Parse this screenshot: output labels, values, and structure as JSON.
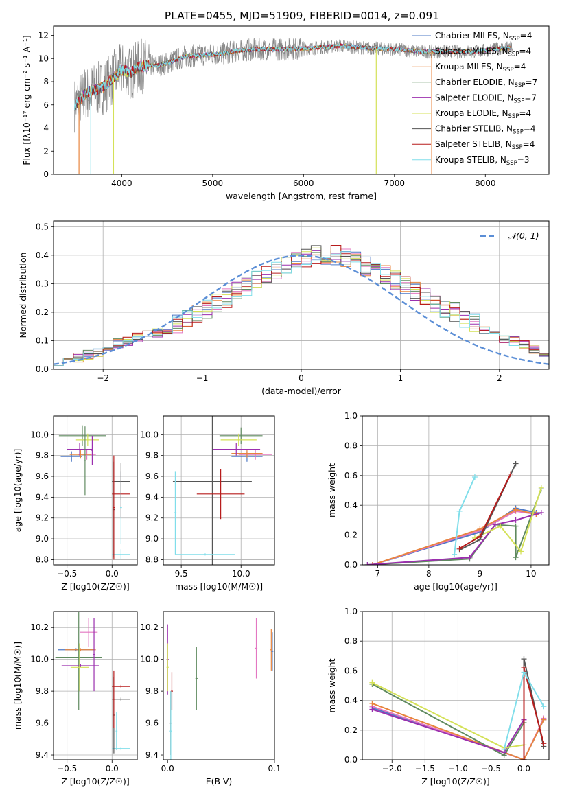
{
  "title": "PLATE=0455, MJD=51909, FIBERID=0014, z=0.091",
  "colors": {
    "Chabrier MILES": "#4e79c5",
    "Salpeter MILES": "#e377c2",
    "Kroupa MILES": "#e8853e",
    "Chabrier ELODIE": "#5f8a5f",
    "Salpeter ELODIE": "#9b2fae",
    "Kroupa ELODIE": "#d4e157",
    "Chabrier STELIB": "#555555",
    "Salpeter STELIB": "#b71c1c",
    "Kroupa STELIB": "#80deea",
    "gaussian": "#5b8ed6"
  },
  "chart_data": [
    {
      "id": "spectrum",
      "type": "line",
      "xlabel": "wavelength [Angstrom, rest frame]",
      "ylabel": "Flux [fλ10⁻¹⁷ erg cm⁻² s⁻¹ A⁻¹]",
      "xlim": [
        3250,
        8700
      ],
      "ylim": [
        0,
        12.8
      ],
      "xticks": [
        4000,
        5000,
        6000,
        7000,
        8000
      ],
      "yticks": [
        0,
        2,
        4,
        6,
        8,
        10,
        12
      ],
      "data_continuum": {
        "x": [
          3500,
          3600,
          3700,
          3800,
          3900,
          4000,
          4100,
          4200,
          4300,
          4400,
          4500,
          4700,
          4900,
          5100,
          5300,
          5500,
          5800,
          6100,
          6400,
          6700,
          7000,
          7300,
          7600,
          7900,
          8200
        ],
        "y": [
          6.0,
          7.0,
          7.3,
          7.5,
          8.3,
          9.0,
          8.8,
          9.3,
          9.4,
          9.4,
          9.6,
          10.2,
          10.3,
          10.4,
          10.7,
          10.8,
          10.8,
          10.9,
          11.1,
          10.9,
          10.8,
          10.6,
          10.6,
          10.6,
          10.9
        ]
      },
      "legend": [
        "Chabrier MILES, N_SSP=4",
        "Salpeter MILES, N_SSP=4",
        "Kroupa MILES, N_SSP=4",
        "Chabrier ELODIE, N_SSP=7",
        "Salpeter ELODIE, N_SSP=7",
        "Kroupa ELODIE, N_SSP=4",
        "Chabrier STELIB, N_SSP=4",
        "Salpeter STELIB, N_SSP=4",
        "Kroupa STELIB, N_SSP=3"
      ],
      "legend_text": [
        {
          "name": "Chabrier MILES",
          "n": "4"
        },
        {
          "name": "Salpeter MILES",
          "n": "4"
        },
        {
          "name": "Kroupa MILES",
          "n": "4"
        },
        {
          "name": "Chabrier ELODIE",
          "n": "7"
        },
        {
          "name": "Salpeter ELODIE",
          "n": "7"
        },
        {
          "name": "Kroupa ELODIE",
          "n": "4"
        },
        {
          "name": "Chabrier STELIB",
          "n": "4"
        },
        {
          "name": "Salpeter STELIB",
          "n": "4"
        },
        {
          "name": "Kroupa STELIB",
          "n": "3"
        }
      ],
      "legend_placement": "right"
    },
    {
      "id": "residuals",
      "type": "line",
      "xlabel": "(data-model)/error",
      "ylabel": "Normed distribution",
      "xlim": [
        -2.5,
        2.5
      ],
      "ylim": [
        0,
        0.52
      ],
      "xticks": [
        -2,
        -1,
        0,
        1,
        2
      ],
      "xtick_labels": [
        "−2",
        "−1",
        "0",
        "1",
        "2"
      ],
      "yticks": [
        0.0,
        0.1,
        0.2,
        0.3,
        0.4,
        0.5
      ],
      "ytick_labels": [
        "0.0",
        "0.1",
        "0.2",
        "0.3",
        "0.4",
        "0.5"
      ],
      "bin_width": 0.1,
      "bins_start": -2.5,
      "histogram_values": [
        0.03,
        0.04,
        0.04,
        0.05,
        0.06,
        0.08,
        0.09,
        0.1,
        0.11,
        0.12,
        0.13,
        0.14,
        0.16,
        0.18,
        0.2,
        0.21,
        0.23,
        0.25,
        0.27,
        0.29,
        0.31,
        0.33,
        0.35,
        0.36,
        0.38,
        0.39,
        0.4,
        0.4,
        0.4,
        0.39,
        0.38,
        0.36,
        0.35,
        0.33,
        0.31,
        0.29,
        0.27,
        0.25,
        0.23,
        0.21,
        0.2,
        0.18,
        0.16,
        0.14,
        0.12,
        0.11,
        0.1,
        0.09,
        0.07,
        0.06
      ],
      "gaussian_label": "𝒩(0, 1)",
      "legend_placement": "top-right",
      "grid": true
    },
    {
      "id": "age-vs-Z",
      "type": "scatter",
      "xlabel": "Z [log10(Z/Z☉)]",
      "ylabel": "age  [log10(age/yr)]",
      "xlim": [
        -0.65,
        0.28
      ],
      "ylim": [
        8.75,
        10.18
      ],
      "xticks": [
        -0.5,
        0.0
      ],
      "xtick_labels": [
        "−0.5",
        "0.0"
      ],
      "yticks": [
        8.8,
        9.0,
        9.2,
        9.4,
        9.6,
        9.8,
        10.0
      ],
      "ytick_labels": [
        "8.8",
        "9.0",
        "9.2",
        "9.4",
        "9.6",
        "9.8",
        "10.0"
      ],
      "grid": true,
      "points": [
        {
          "model": "Chabrier MILES",
          "x": -0.45,
          "xerr": 0.12,
          "y": 9.79,
          "yerr": 0.05
        },
        {
          "model": "Salpeter MILES",
          "x": -0.28,
          "xerr": 0.1,
          "y": 9.81,
          "yerr": 0.05
        },
        {
          "model": "Kroupa MILES",
          "x": -0.35,
          "xerr": 0.12,
          "y": 9.81,
          "yerr": 0.04
        },
        {
          "model": "Chabrier ELODIE",
          "x": -0.33,
          "xerr": 0.26,
          "y": 9.99,
          "yerr": 0.1
        },
        {
          "model": "Salpeter ELODIE",
          "x": -0.36,
          "xerr": 0.14,
          "y": 9.86,
          "yerr": 0.06
        },
        {
          "model": "Kroupa ELODIE",
          "x": -0.27,
          "xerr": 0.13,
          "y": 9.95,
          "yerr": 0.06
        },
        {
          "model": "Chabrier STELIB",
          "x": 0.1,
          "xerr": 0.1,
          "y": 9.55,
          "yerr": 0.18
        },
        {
          "model": "Salpeter STELIB",
          "x": 0.1,
          "xerr": 0.1,
          "y": 9.43,
          "yerr": 0.22
        },
        {
          "model": "Kroupa STELIB",
          "x": 0.1,
          "xerr": 0.1,
          "y": 8.85,
          "yerr": 0.05
        },
        {
          "model": "Chabrier ELODIE",
          "x": -0.3,
          "xerr": 0.01,
          "y": 9.75,
          "yerr": 0.33
        },
        {
          "model": "Salpeter ELODIE",
          "x": -0.22,
          "xerr": 0.01,
          "y": 9.85,
          "yerr": 0.14
        },
        {
          "model": "Kroupa STELIB",
          "x": 0.1,
          "xerr": 0.01,
          "y": 9.3,
          "yerr": 0.35
        },
        {
          "model": "Chabrier STELIB",
          "x": 0.02,
          "xerr": 0.01,
          "y": 9.28,
          "yerr": 0.46
        },
        {
          "model": "Salpeter STELIB",
          "x": 0.02,
          "xerr": 0.01,
          "y": 9.3,
          "yerr": 0.5
        }
      ]
    },
    {
      "id": "age-vs-mass",
      "type": "scatter",
      "xlabel": "mass [log10(M/M☉)]",
      "ylabel": "",
      "xlim": [
        9.35,
        10.28
      ],
      "ylim": [
        8.75,
        10.18
      ],
      "xticks": [
        9.5,
        10.0
      ],
      "xtick_labels": [
        "9.5",
        "10.0"
      ],
      "yticks": [
        8.8,
        9.0,
        9.2,
        9.4,
        9.6,
        9.8,
        10.0
      ],
      "ytick_labels": [
        "8.8",
        "9.0",
        "9.2",
        "9.4",
        "9.6",
        "9.8",
        "10.0"
      ],
      "grid": true,
      "points": [
        {
          "model": "Chabrier MILES",
          "x": 10.05,
          "xerr": 0.13,
          "y": 9.79,
          "yerr": 0.05
        },
        {
          "model": "Salpeter MILES",
          "x": 10.12,
          "xerr": 0.14,
          "y": 9.81,
          "yerr": 0.05
        },
        {
          "model": "Kroupa MILES",
          "x": 10.05,
          "xerr": 0.13,
          "y": 9.82,
          "yerr": 0.04
        },
        {
          "model": "Chabrier ELODIE",
          "x": 10.0,
          "xerr": 0.18,
          "y": 9.99,
          "yerr": 0.08
        },
        {
          "model": "Salpeter ELODIE",
          "x": 9.96,
          "xerr": 0.2,
          "y": 9.86,
          "yerr": 0.06
        },
        {
          "model": "Kroupa ELODIE",
          "x": 9.98,
          "xerr": 0.15,
          "y": 9.95,
          "yerr": 0.06
        },
        {
          "model": "Chabrier STELIB",
          "x": 9.76,
          "xerr": 0.33,
          "y": 9.55,
          "yerr": 0.8
        },
        {
          "model": "Salpeter STELIB",
          "x": 9.83,
          "xerr": 0.2,
          "y": 9.43,
          "yerr": 0.24
        },
        {
          "model": "Kroupa STELIB",
          "x": 9.45,
          "xerr": 0.01,
          "y": 9.25,
          "yerr": 0.4
        },
        {
          "model": "Kroupa STELIB",
          "x": 9.7,
          "xerr": 0.25,
          "y": 8.85,
          "yerr": 0.01
        }
      ]
    },
    {
      "id": "weight-vs-age",
      "type": "line",
      "xlabel": "age  [log10(age/yr)]",
      "ylabel": "mass weight",
      "xlim": [
        6.7,
        10.35
      ],
      "ylim": [
        0,
        1.0
      ],
      "xticks": [
        7,
        8,
        9,
        10
      ],
      "xtick_labels": [
        "7",
        "8",
        "9",
        "10"
      ],
      "yticks": [
        0.0,
        0.2,
        0.4,
        0.6,
        0.8,
        1.0
      ],
      "ytick_labels": [
        "0.0",
        "0.2",
        "0.4",
        "0.6",
        "0.8",
        "1.0"
      ],
      "grid": true,
      "series": [
        {
          "name": "Chabrier MILES",
          "x": [
            6.9,
            9.0,
            9.7,
            10.1
          ],
          "y": [
            0.0,
            0.22,
            0.38,
            0.35
          ]
        },
        {
          "name": "Salpeter MILES",
          "x": [
            6.9,
            9.0,
            9.7,
            10.1
          ],
          "y": [
            0.0,
            0.23,
            0.36,
            0.34
          ]
        },
        {
          "name": "Kroupa MILES",
          "x": [
            6.9,
            9.0,
            9.7,
            10.1
          ],
          "y": [
            0.0,
            0.24,
            0.37,
            0.34
          ]
        },
        {
          "name": "Chabrier ELODIE",
          "x": [
            6.8,
            8.8,
            9.3,
            9.7,
            9.7,
            10.2
          ],
          "y": [
            0.0,
            0.04,
            0.27,
            0.26,
            0.05,
            0.51
          ]
        },
        {
          "name": "Salpeter ELODIE",
          "x": [
            6.8,
            8.8,
            9.3,
            9.7,
            10.2
          ],
          "y": [
            0.0,
            0.05,
            0.27,
            0.3,
            0.35
          ]
        },
        {
          "name": "Kroupa ELODIE",
          "x": [
            8.9,
            9.4,
            9.8,
            10.2
          ],
          "y": [
            0.18,
            0.26,
            0.09,
            0.52
          ]
        },
        {
          "name": "Chabrier STELIB",
          "x": [
            8.6,
            9.0,
            9.7
          ],
          "y": [
            0.1,
            0.17,
            0.68
          ]
        },
        {
          "name": "Salpeter STELIB",
          "x": [
            8.6,
            9.0,
            9.6
          ],
          "y": [
            0.11,
            0.19,
            0.61
          ]
        },
        {
          "name": "Kroupa STELIB",
          "x": [
            8.5,
            8.6,
            8.9
          ],
          "y": [
            0.07,
            0.36,
            0.59
          ]
        }
      ]
    },
    {
      "id": "mass-vs-Z",
      "type": "scatter",
      "xlabel": "Z [log10(Z/Z☉)]",
      "ylabel": "mass [log10(M/M☉)]",
      "xlim": [
        -0.65,
        0.28
      ],
      "ylim": [
        9.37,
        10.3
      ],
      "xticks": [
        -0.5,
        0.0
      ],
      "xtick_labels": [
        "−0.5",
        "0.0"
      ],
      "yticks": [
        9.4,
        9.6,
        9.8,
        10.0,
        10.2
      ],
      "ytick_labels": [
        "9.4",
        "9.6",
        "9.8",
        "10.0",
        "10.2"
      ],
      "grid": true,
      "points": [
        {
          "model": "Chabrier MILES",
          "x": -0.4,
          "xerr": 0.2,
          "y": 10.06,
          "yerr": 0.01
        },
        {
          "model": "Salpeter MILES",
          "x": -0.26,
          "xerr": 0.1,
          "y": 10.17,
          "yerr": 0.09
        },
        {
          "model": "Kroupa MILES",
          "x": -0.35,
          "xerr": 0.17,
          "y": 10.06,
          "yerr": 0.01
        },
        {
          "model": "Chabrier ELODIE",
          "x": -0.37,
          "xerr": 0.26,
          "y": 10.01,
          "yerr": 0.33
        },
        {
          "model": "Salpeter ELODIE",
          "x": -0.35,
          "xerr": 0.21,
          "y": 9.96,
          "yerr": 0.01
        },
        {
          "model": "Kroupa ELODIE",
          "x": -0.36,
          "xerr": 0.1,
          "y": 9.95,
          "yerr": 0.15
        },
        {
          "model": "Chabrier STELIB",
          "x": 0.1,
          "xerr": 0.1,
          "y": 9.75,
          "yerr": 0.01
        },
        {
          "model": "Salpeter STELIB",
          "x": 0.1,
          "xerr": 0.1,
          "y": 9.83,
          "yerr": 0.01
        },
        {
          "model": "Kroupa STELIB",
          "x": 0.1,
          "xerr": 0.1,
          "y": 9.44,
          "yerr": 0.01
        },
        {
          "model": "Salpeter ELODIE",
          "x": -0.2,
          "xerr": 0.01,
          "y": 10.03,
          "yerr": 0.23
        },
        {
          "model": "Chabrier STELIB",
          "x": 0.02,
          "xerr": 0.01,
          "y": 9.65,
          "yerr": 0.24
        },
        {
          "model": "Salpeter STELIB",
          "x": 0.02,
          "xerr": 0.01,
          "y": 9.75,
          "yerr": 0.18
        },
        {
          "model": "Kroupa STELIB",
          "x": 0.05,
          "xerr": 0.01,
          "y": 9.55,
          "yerr": 0.12
        }
      ]
    },
    {
      "id": "mass-vs-ebv",
      "type": "scatter",
      "xlabel": "E(B-V)",
      "ylabel": "",
      "xlim": [
        -0.004,
        0.1
      ],
      "ylim": [
        9.37,
        10.3
      ],
      "xticks": [
        0.0,
        0.1
      ],
      "xtick_labels": [
        "0.0",
        "0.1"
      ],
      "yticks": [
        9.4,
        9.6,
        9.8,
        10.0,
        10.2
      ],
      "ytick_labels": [
        "9.4",
        "9.6",
        "9.8",
        "10.0",
        "10.2"
      ],
      "grid": false,
      "points": [
        {
          "model": "Salpeter ELODIE",
          "x": 0.0,
          "xerr": 0.001,
          "y": 10.0,
          "yerr": 0.22
        },
        {
          "model": "Kroupa ELODIE",
          "x": 0.0,
          "xerr": 0.001,
          "y": 9.95,
          "yerr": 0.15
        },
        {
          "model": "Chabrier STELIB",
          "x": 0.003,
          "xerr": 0.001,
          "y": 9.6,
          "yerr": 0.2
        },
        {
          "model": "Salpeter STELIB",
          "x": 0.004,
          "xerr": 0.001,
          "y": 9.8,
          "yerr": 0.12
        },
        {
          "model": "Kroupa STELIB",
          "x": 0.003,
          "xerr": 0.001,
          "y": 9.55,
          "yerr": 0.25
        },
        {
          "model": "Chabrier ELODIE",
          "x": 0.027,
          "xerr": 0.001,
          "y": 9.88,
          "yerr": 0.2
        },
        {
          "model": "Salpeter MILES",
          "x": 0.083,
          "xerr": 0.001,
          "y": 10.07,
          "yerr": 0.19
        },
        {
          "model": "Kroupa MILES",
          "x": 0.097,
          "xerr": 0.001,
          "y": 10.06,
          "yerr": 0.13
        },
        {
          "model": "Chabrier MILES",
          "x": 0.098,
          "xerr": 0.001,
          "y": 10.05,
          "yerr": 0.12
        }
      ]
    },
    {
      "id": "weight-vs-Z",
      "type": "line",
      "xlabel": "Z [log10(Z/Z☉)]",
      "ylabel": "mass weight",
      "xlim": [
        -2.45,
        0.38
      ],
      "ylim": [
        0,
        1.0
      ],
      "xticks": [
        -2.0,
        -1.5,
        -1.0,
        -0.5,
        0.0
      ],
      "xtick_labels": [
        "−2.0",
        "−1.5",
        "−1.0",
        "−0.5",
        "0.0"
      ],
      "yticks": [
        0.0,
        0.2,
        0.4,
        0.6,
        0.8,
        1.0
      ],
      "ytick_labels": [
        "0.0",
        "0.2",
        "0.4",
        "0.6",
        "0.8",
        "1.0"
      ],
      "grid": true,
      "series": [
        {
          "name": "Chabrier MILES",
          "x": [
            -2.3,
            -0.3,
            0.0,
            0.3
          ],
          "y": [
            0.35,
            0.05,
            0.0,
            0.27
          ]
        },
        {
          "name": "Salpeter MILES",
          "x": [
            -2.3,
            0.0,
            0.3
          ],
          "y": [
            0.36,
            0.0,
            0.28
          ]
        },
        {
          "name": "Kroupa MILES",
          "x": [
            -2.3,
            -0.3,
            0.0,
            0.3
          ],
          "y": [
            0.38,
            0.05,
            0.0,
            0.27
          ]
        },
        {
          "name": "Chabrier ELODIE",
          "x": [
            -2.3,
            -0.3,
            0.0
          ],
          "y": [
            0.51,
            0.03,
            0.25
          ]
        },
        {
          "name": "Salpeter ELODIE",
          "x": [
            -2.3,
            -0.3,
            0.0
          ],
          "y": [
            0.34,
            0.05,
            0.27
          ]
        },
        {
          "name": "Kroupa ELODIE",
          "x": [
            -2.3,
            -0.3,
            0.0
          ],
          "y": [
            0.52,
            0.08,
            0.1
          ]
        },
        {
          "name": "Chabrier STELIB",
          "x": [
            0.0,
            0.0,
            0.3
          ],
          "y": [
            0.0,
            0.68,
            0.09
          ]
        },
        {
          "name": "Salpeter STELIB",
          "x": [
            0.0,
            0.0,
            0.3
          ],
          "y": [
            0.0,
            0.62,
            0.11
          ]
        },
        {
          "name": "Kroupa STELIB",
          "x": [
            -0.3,
            0.0,
            0.3
          ],
          "y": [
            0.07,
            0.59,
            0.36
          ]
        }
      ]
    }
  ]
}
